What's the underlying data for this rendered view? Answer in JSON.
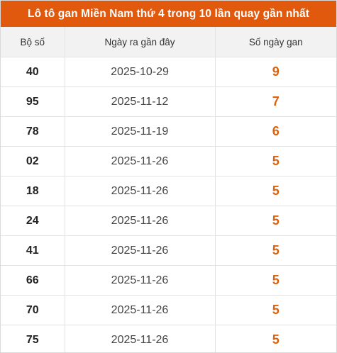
{
  "title": "Lô tô gan Miền Nam thứ 4 trong 10 lần quay gần nhất",
  "headers": [
    "Bộ số",
    "Ngày ra gần đây",
    "Số ngày gan"
  ],
  "rows": [
    {
      "num": "40",
      "date": "2025-10-29",
      "days": "9"
    },
    {
      "num": "95",
      "date": "2025-11-12",
      "days": "7"
    },
    {
      "num": "78",
      "date": "2025-11-19",
      "days": "6"
    },
    {
      "num": "02",
      "date": "2025-11-26",
      "days": "5"
    },
    {
      "num": "18",
      "date": "2025-11-26",
      "days": "5"
    },
    {
      "num": "24",
      "date": "2025-11-26",
      "days": "5"
    },
    {
      "num": "41",
      "date": "2025-11-26",
      "days": "5"
    },
    {
      "num": "66",
      "date": "2025-11-26",
      "days": "5"
    },
    {
      "num": "70",
      "date": "2025-11-26",
      "days": "5"
    },
    {
      "num": "75",
      "date": "2025-11-26",
      "days": "5"
    }
  ],
  "colors": {
    "title_bg": "#e0590d",
    "title_text": "#ffffff",
    "header_bg": "#f2f2f2",
    "days_text": "#d9620f"
  }
}
